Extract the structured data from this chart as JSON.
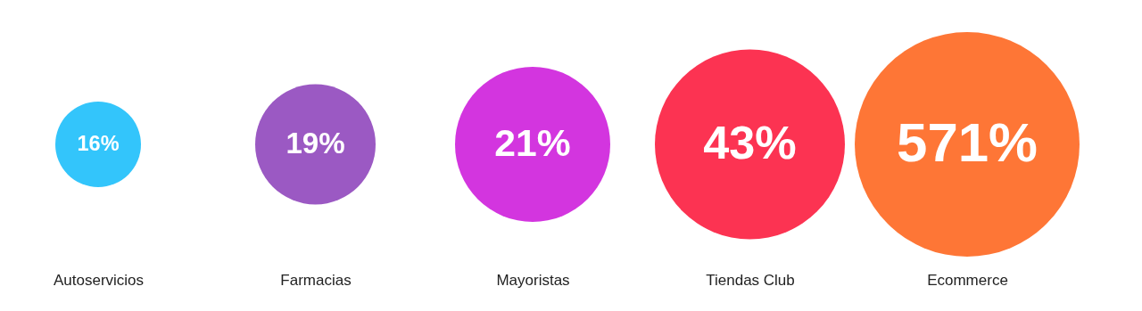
{
  "chart_data": {
    "type": "other",
    "categories": [
      "Autoservicios",
      "Farmacias",
      "Mayoristas",
      "Tiendas Club",
      "Ecommerce"
    ],
    "values": [
      16,
      19,
      21,
      43,
      571
    ],
    "value_labels": [
      "16%",
      "19%",
      "21%",
      "43%",
      "571%"
    ],
    "colors": [
      "#33c5fb",
      "#9b59c3",
      "#d335df",
      "#fc3352",
      "#fe7636"
    ]
  }
}
